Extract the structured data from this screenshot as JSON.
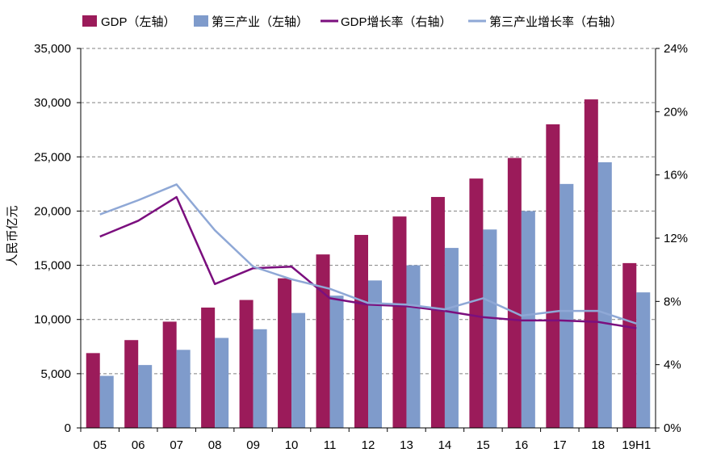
{
  "chart_data": {
    "type": "bar",
    "title": "",
    "categories": [
      "05",
      "06",
      "07",
      "08",
      "09",
      "10",
      "11",
      "12",
      "13",
      "14",
      "15",
      "16",
      "17",
      "18",
      "19H1"
    ],
    "ylabel": "人民币亿元",
    "ylim": [
      0,
      35000
    ],
    "y_ticks": [
      "0",
      "5,000",
      "10,000",
      "15,000",
      "20,000",
      "25,000",
      "30,000",
      "35,000"
    ],
    "y2lim": [
      0,
      24
    ],
    "y2_ticks": [
      "0%",
      "4%",
      "8%",
      "12%",
      "16%",
      "20%",
      "24%"
    ],
    "grid": "horizontal dashed",
    "legend_position": "top",
    "bar_series": [
      {
        "name": "GDP（左轴）",
        "axis": "left",
        "color": "#9B1B5A",
        "values": [
          6900,
          8100,
          9800,
          11100,
          11800,
          13800,
          16000,
          17800,
          19500,
          21300,
          23000,
          24900,
          28000,
          30300,
          15200
        ]
      },
      {
        "name": "第三产业（左轴）",
        "axis": "left",
        "color": "#7F9BCB",
        "values": [
          4800,
          5800,
          7200,
          8300,
          9100,
          10600,
          12200,
          13600,
          15000,
          16600,
          18300,
          20000,
          22500,
          24500,
          12500
        ]
      }
    ],
    "line_series": [
      {
        "name": "GDP增长率（右轴）",
        "axis": "right",
        "color": "#7B0F7E",
        "values": [
          12.1,
          13.1,
          14.6,
          9.1,
          10.1,
          10.2,
          8.2,
          7.8,
          7.7,
          7.4,
          7.0,
          6.8,
          6.8,
          6.7,
          6.3
        ]
      },
      {
        "name": "第三产业增长率（右轴）",
        "axis": "right",
        "color": "#8FA8D6",
        "values": [
          13.5,
          14.4,
          15.4,
          12.5,
          10.2,
          9.4,
          8.8,
          7.9,
          7.8,
          7.5,
          8.2,
          7.1,
          7.4,
          7.4,
          6.6
        ]
      }
    ]
  }
}
